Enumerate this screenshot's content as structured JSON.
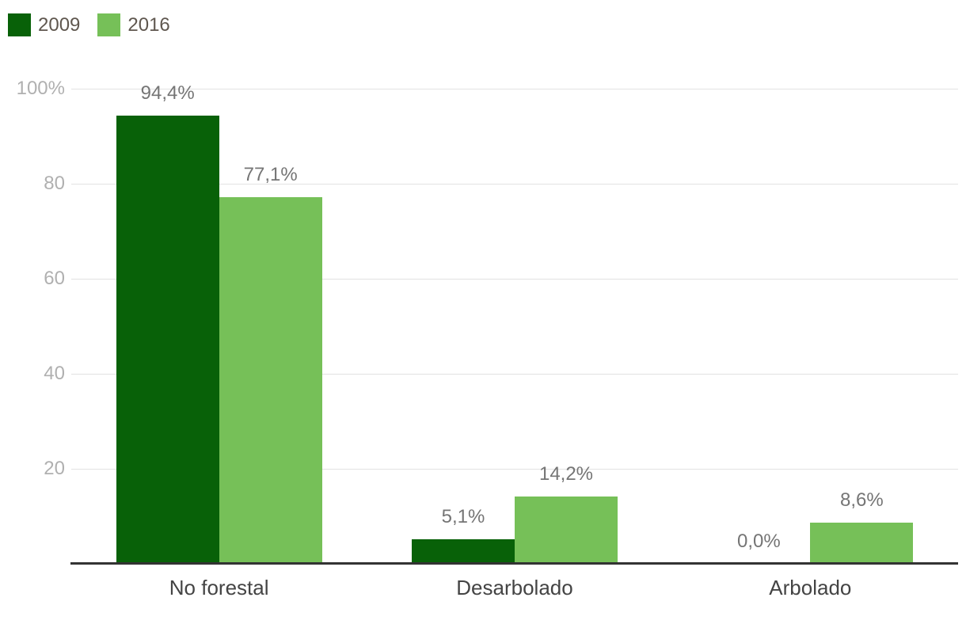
{
  "chart_data": {
    "type": "bar",
    "title": "",
    "xlabel": "",
    "ylabel": "",
    "categories": [
      "No forestal",
      "Desarbolado",
      "Arbolado"
    ],
    "series": [
      {
        "name": "2009",
        "color": "#086108",
        "values": [
          94.4,
          5.1,
          0.0
        ],
        "value_labels": [
          "94,4%",
          "5,1%",
          "0,0%"
        ]
      },
      {
        "name": "2016",
        "color": "#76c058",
        "values": [
          77.1,
          14.2,
          8.6
        ],
        "value_labels": [
          "77,1%",
          "14,2%",
          "8,6%"
        ]
      }
    ],
    "y_axis": {
      "min": 0,
      "max": 100,
      "grid": true,
      "ticks": [
        {
          "value": 100,
          "label": "100%"
        },
        {
          "value": 80,
          "label": "80"
        },
        {
          "value": 60,
          "label": "60"
        },
        {
          "value": 40,
          "label": "40"
        },
        {
          "value": 20,
          "label": "20"
        }
      ]
    },
    "legend": {
      "position": "top-left",
      "entries": [
        "2009",
        "2016"
      ]
    }
  }
}
